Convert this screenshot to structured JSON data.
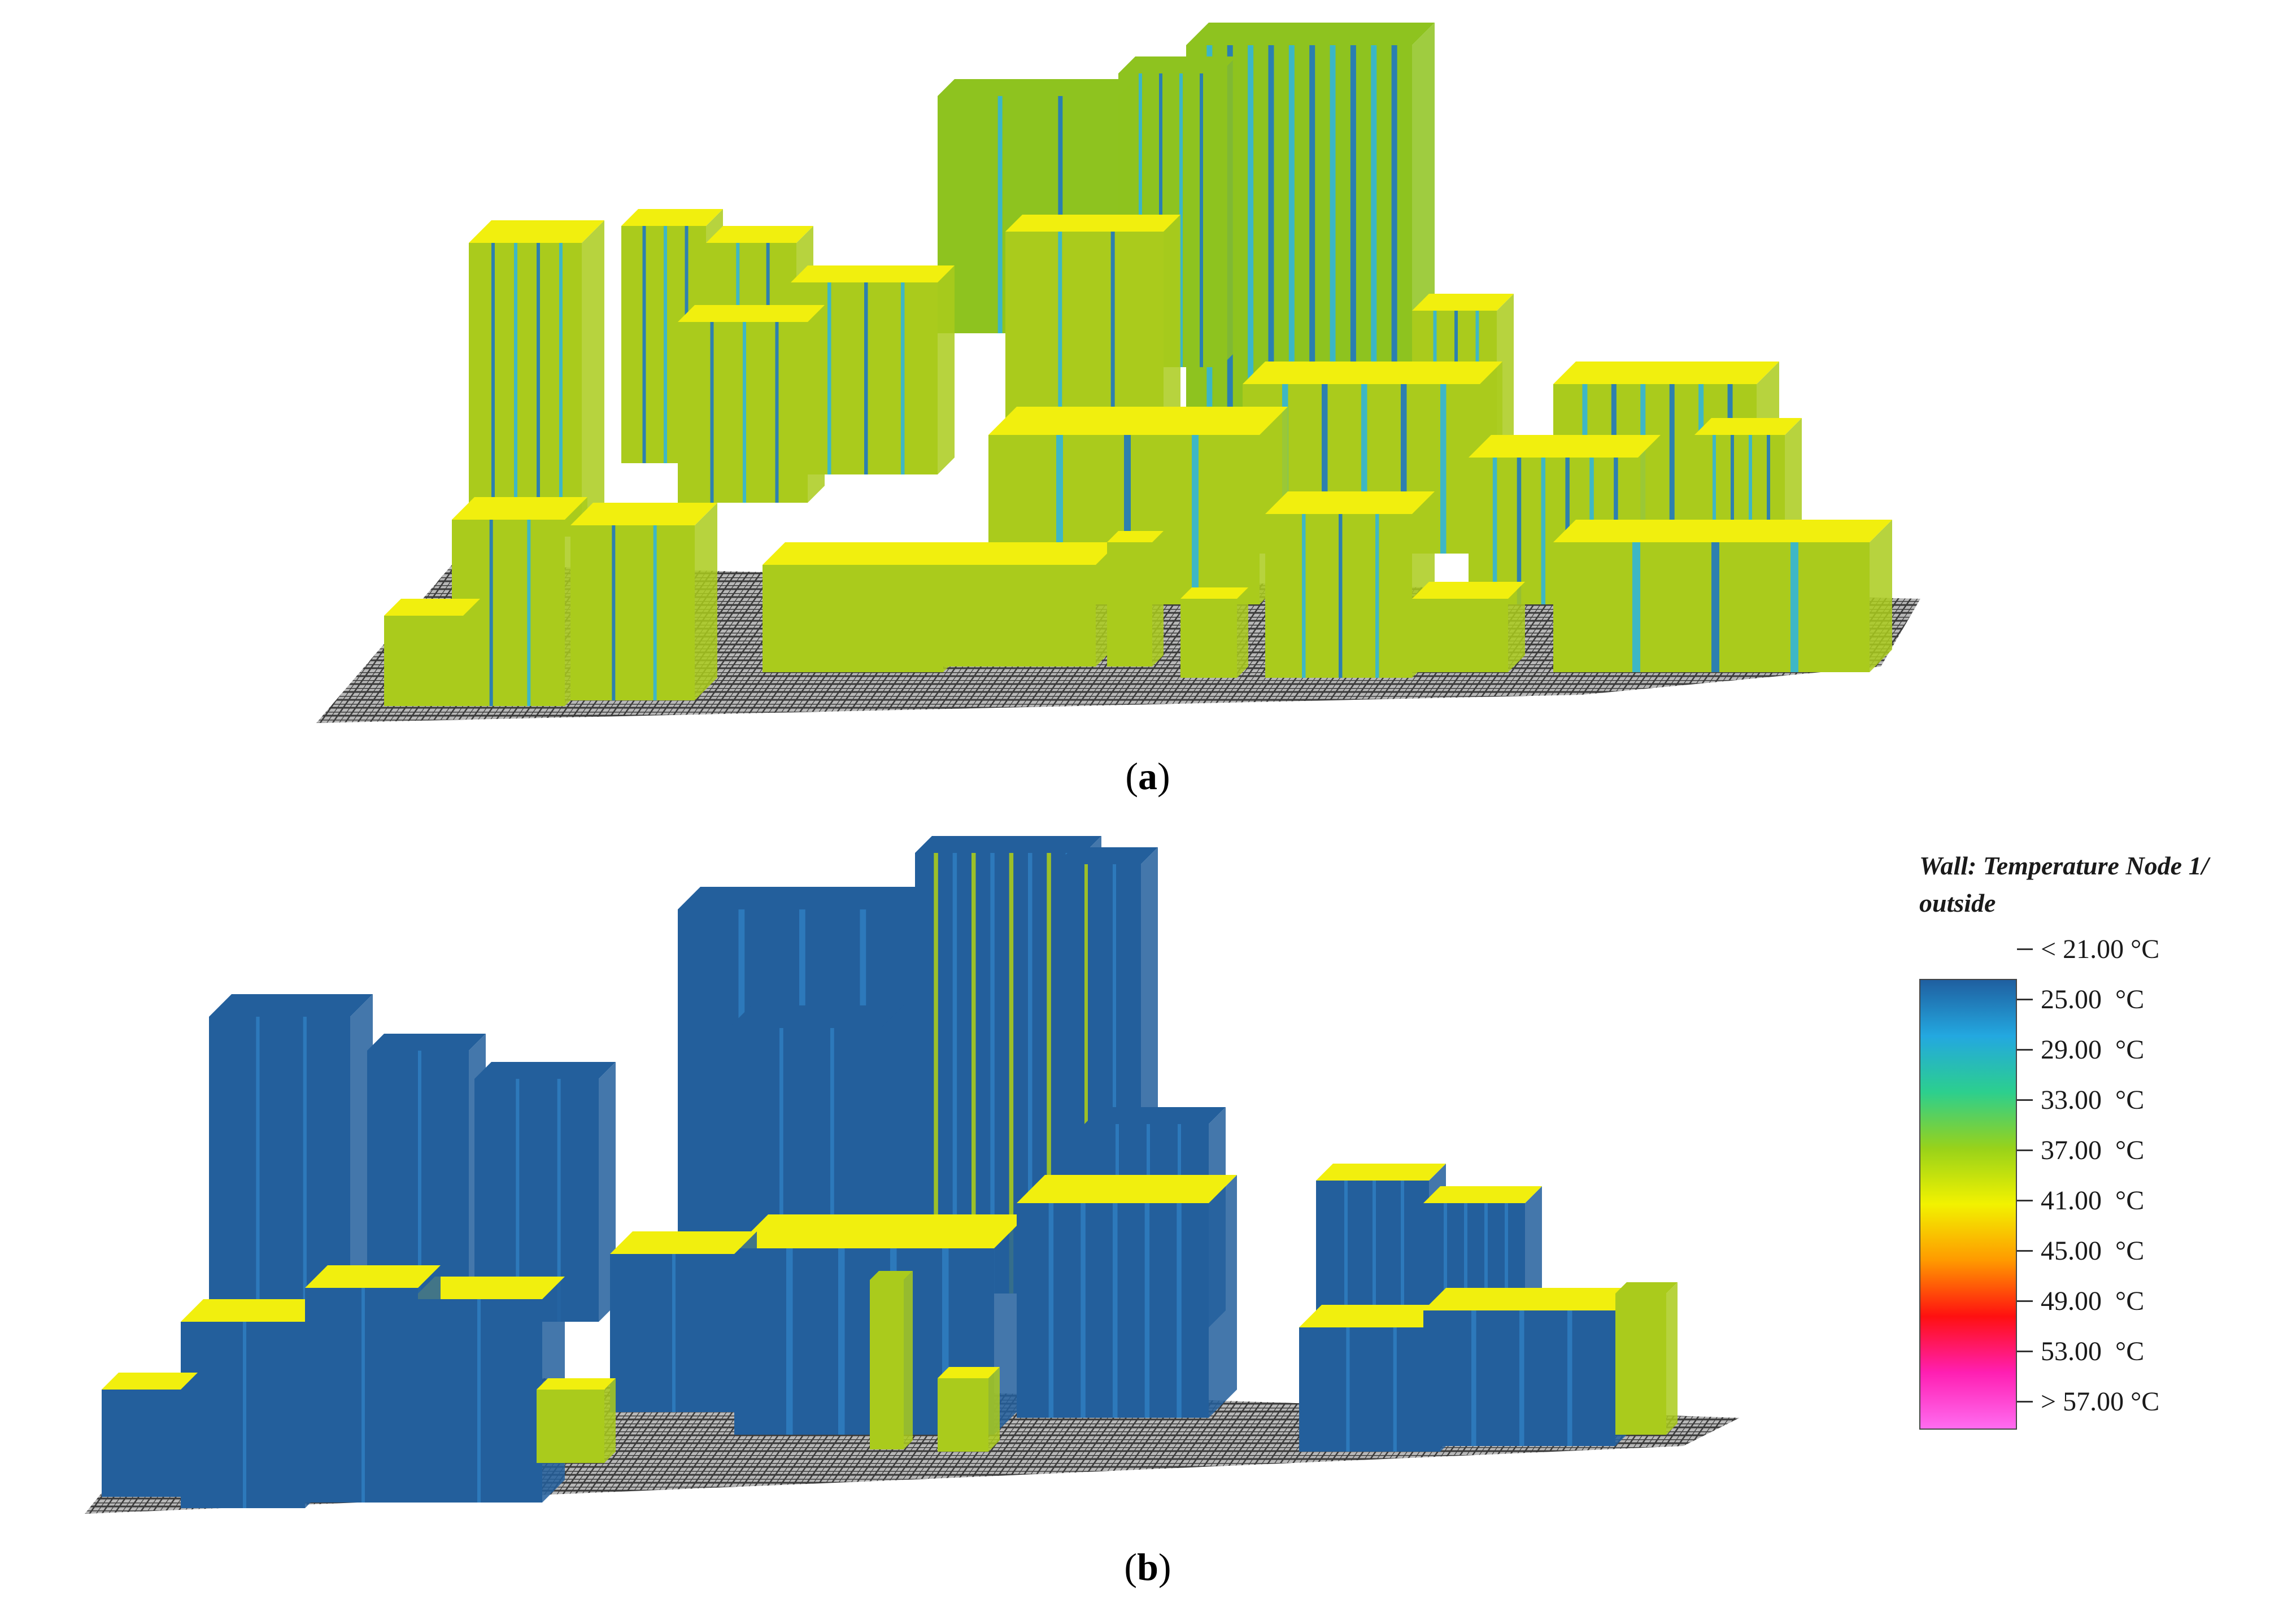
{
  "panels": [
    {
      "id": "a",
      "caption_open": "(",
      "caption_letter": "a",
      "caption_close": ")"
    },
    {
      "id": "b",
      "caption_open": "(",
      "caption_letter": "b",
      "caption_close": ")"
    }
  ],
  "legend": {
    "title": "Wall: Temperature Node 1/ outside",
    "ticks": [
      "< 21.00 °C",
      "25.00  °C",
      "29.00  °C",
      "33.00  °C",
      "37.00  °C",
      "41.00  °C",
      "45.00  °C",
      "49.00  °C",
      "53.00  °C",
      "> 57.00 °C"
    ],
    "gradient": [
      "#1f5fa0",
      "#23a8e0",
      "#2ccf8e",
      "#98d21a",
      "#f2f200",
      "#ff9a00",
      "#ff1010",
      "#ff1fb2",
      "#ff6cf0"
    ]
  },
  "colors": {
    "grid_dark": "#3a3a3a",
    "grid_light": "#b8b8b8",
    "roof_yellow": "#f1ef0e",
    "wall_yellowgreen": "#aacb1c",
    "wall_green": "#8ec31f",
    "stripe_cyan": "#32b5d8",
    "stripe_blue": "#1f78c0",
    "wall_blue": "#235f9c",
    "wall_blue_light": "#2f7cbf"
  }
}
